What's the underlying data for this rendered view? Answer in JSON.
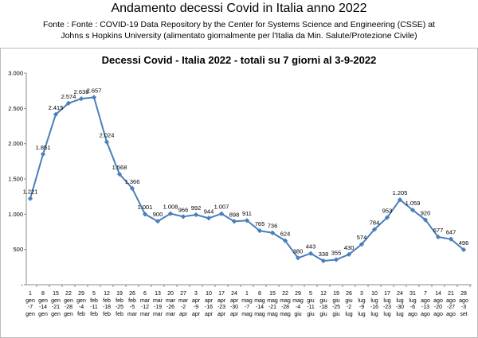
{
  "chart_data": {
    "type": "line",
    "title": "Andamento decessi Covid in Italia anno  2022",
    "subtitle": [
      "Fonte : Fonte : COVID-19 Data Repository by the Center for Systems Science and Engineering (CSSE) at",
      "Johns s Hopkins University  (alimentato giornalmente per l'Italia da Min. Salute/Protezione Civile)"
    ],
    "chart_title": "Decessi Covid - Italia 2022 - totali su 7 giorni al 3-9-2022",
    "categories": [
      "1 gen -7 gen",
      "8 gen -14 gen",
      "15 gen -21 gen",
      "22 gen -28 gen",
      "29 gen -4 feb",
      "5 feb -11 feb",
      "12 feb -18 feb",
      "19 feb -25 feb",
      "26 feb -5 mar",
      "6 mar -12 mar",
      "13 mar -19 mar",
      "20 mar -26 mar",
      "27 mar -2 apr",
      "3 apr -9 apr",
      "10 apr -16 apr",
      "17 apr -23 apr",
      "24 apr -30 apr",
      "1 mag -7 mag",
      "8 mag -14 mag",
      "15 mag -21 mag",
      "22 mag -28 mag",
      "29 mag -4 giu",
      "5 giu -11 giu",
      "12 giu -18 giu",
      "19 giu -25 giu",
      "26 giu -2 lug",
      "3 lug -9 lug",
      "10 lug -16 lug",
      "17 lug -23 lug",
      "24 lug -30 lug",
      "31 lug -6 ago",
      "7 ago -13 ago",
      "14 ago -20 ago",
      "21 ago -27 ago",
      "28 ago -3 set"
    ],
    "values": [
      1221,
      1851,
      2415,
      2574,
      2638,
      2657,
      2024,
      1568,
      1366,
      1001,
      900,
      1008,
      966,
      992,
      944,
      1007,
      898,
      911,
      765,
      736,
      624,
      380,
      443,
      338,
      355,
      430,
      574,
      784,
      953,
      1205,
      1059,
      920,
      677,
      647,
      496
    ],
    "value_labels": [
      "1.221",
      "1.851",
      "2.415",
      "2.574",
      "2.638",
      "2.657",
      "2.024",
      "1.568",
      "1.366",
      "1.001",
      "900",
      "1.008",
      "966",
      "992",
      "944",
      "1.007",
      "898",
      "911",
      "765",
      "736",
      "624",
      "380",
      "443",
      "338",
      "355",
      "430",
      "574",
      "784",
      "953",
      "1.205",
      "1.059",
      "920",
      "677",
      "647",
      "496"
    ],
    "color": "#4a7ebb",
    "ylim": [
      0,
      3000
    ],
    "yticks": [
      {
        "value": 0,
        "label": "-"
      },
      500,
      {
        "value": 1000,
        "label": "1.000"
      },
      {
        "value": 1500,
        "label": "1.500"
      },
      {
        "value": 2000,
        "label": "2.000"
      },
      {
        "value": 2500,
        "label": "2.500"
      },
      {
        "value": 3000,
        "label": "3.000"
      }
    ],
    "grid": false
  }
}
